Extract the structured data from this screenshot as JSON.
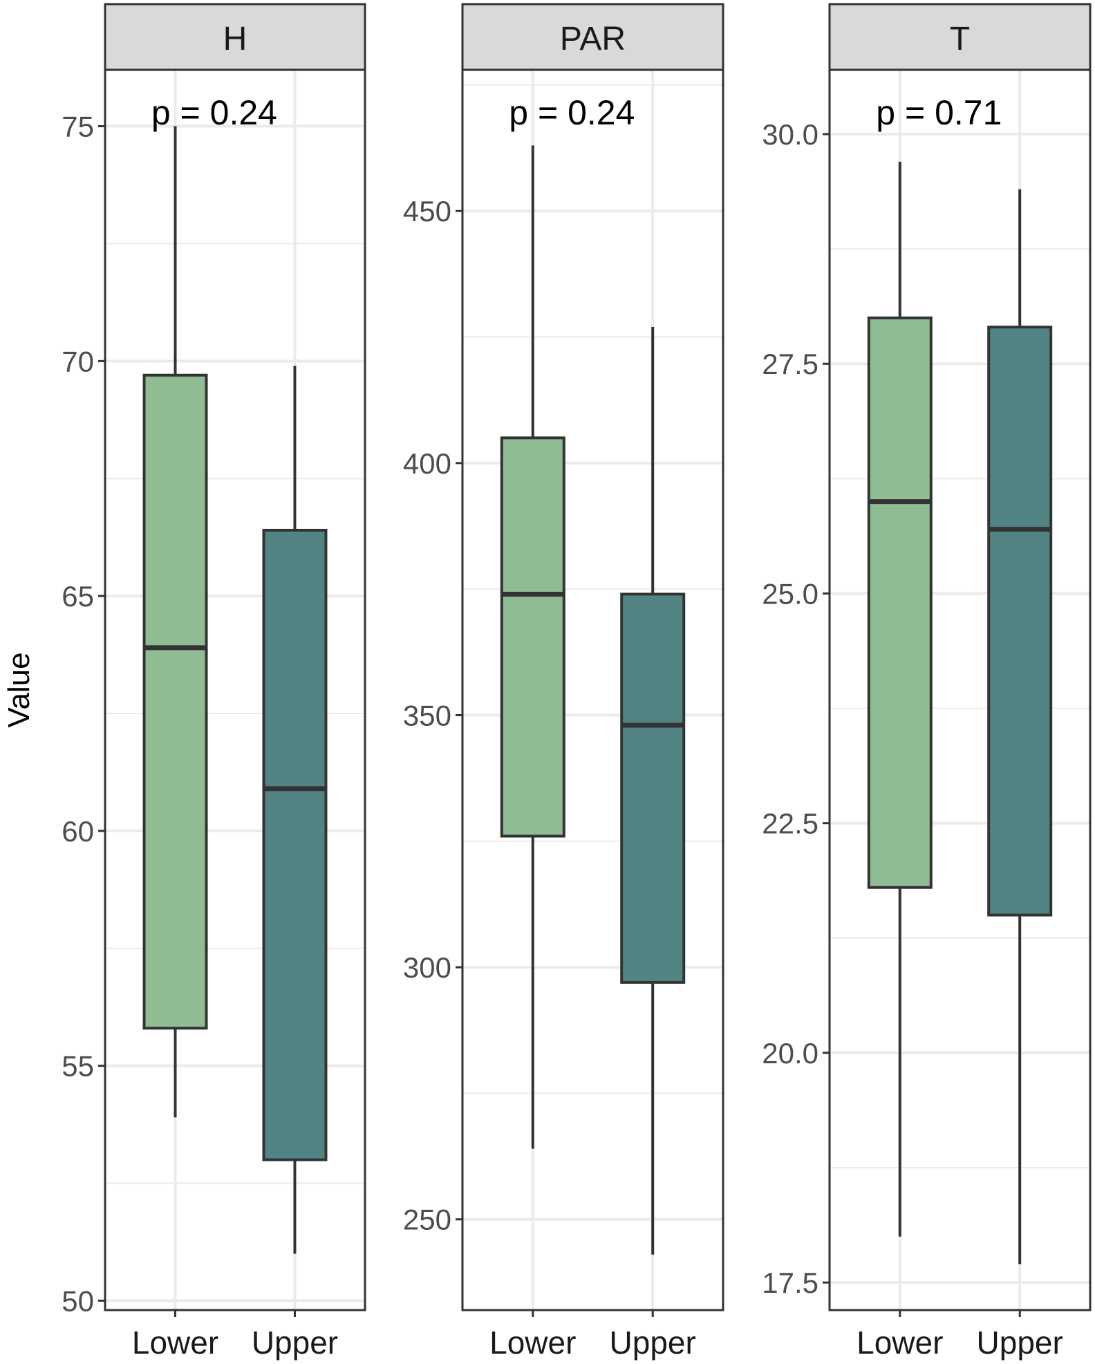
{
  "chart_data": {
    "type": "boxplot",
    "ylabel": "Value",
    "categories": [
      "Lower",
      "Upper"
    ],
    "colors": {
      "Lower": "#8fbc93",
      "Upper": "#528483",
      "strip_fill": "#d9d9d9",
      "grid": "#ebebeb",
      "box_stroke": "#333333"
    },
    "panels": [
      {
        "title": "H",
        "annotation": "p = 0.24",
        "ylim": [
          49.8,
          76.2
        ],
        "yticks": [
          50,
          55,
          60,
          65,
          70,
          75
        ],
        "ytick_labels": [
          "50",
          "55",
          "60",
          "65",
          "70",
          "75"
        ],
        "boxes": [
          {
            "category": "Lower",
            "min": 53.9,
            "q1": 55.8,
            "median": 63.9,
            "q3": 69.7,
            "max": 75.0
          },
          {
            "category": "Upper",
            "min": 51.0,
            "q1": 53.0,
            "median": 60.9,
            "q3": 66.4,
            "max": 69.9
          }
        ]
      },
      {
        "title": "PAR",
        "annotation": "p = 0.24",
        "ylim": [
          232,
          478
        ],
        "yticks": [
          250,
          300,
          350,
          400,
          450
        ],
        "ytick_labels": [
          "250",
          "300",
          "350",
          "400",
          "450"
        ],
        "boxes": [
          {
            "category": "Lower",
            "min": 264,
            "q1": 326,
            "median": 374,
            "q3": 405,
            "max": 463
          },
          {
            "category": "Upper",
            "min": 243,
            "q1": 297,
            "median": 348,
            "q3": 374,
            "max": 427
          }
        ]
      },
      {
        "title": "T",
        "annotation": "p = 0.71",
        "ylim": [
          17.2,
          30.7
        ],
        "yticks": [
          17.5,
          20.0,
          22.5,
          25.0,
          27.5,
          30.0
        ],
        "ytick_labels": [
          "17.5",
          "20.0",
          "22.5",
          "25.0",
          "27.5",
          "30.0"
        ],
        "boxes": [
          {
            "category": "Lower",
            "min": 18.0,
            "q1": 21.8,
            "median": 26.0,
            "q3": 28.0,
            "max": 29.7
          },
          {
            "category": "Upper",
            "min": 17.7,
            "q1": 21.5,
            "median": 25.7,
            "q3": 27.9,
            "max": 29.4
          }
        ]
      }
    ]
  }
}
